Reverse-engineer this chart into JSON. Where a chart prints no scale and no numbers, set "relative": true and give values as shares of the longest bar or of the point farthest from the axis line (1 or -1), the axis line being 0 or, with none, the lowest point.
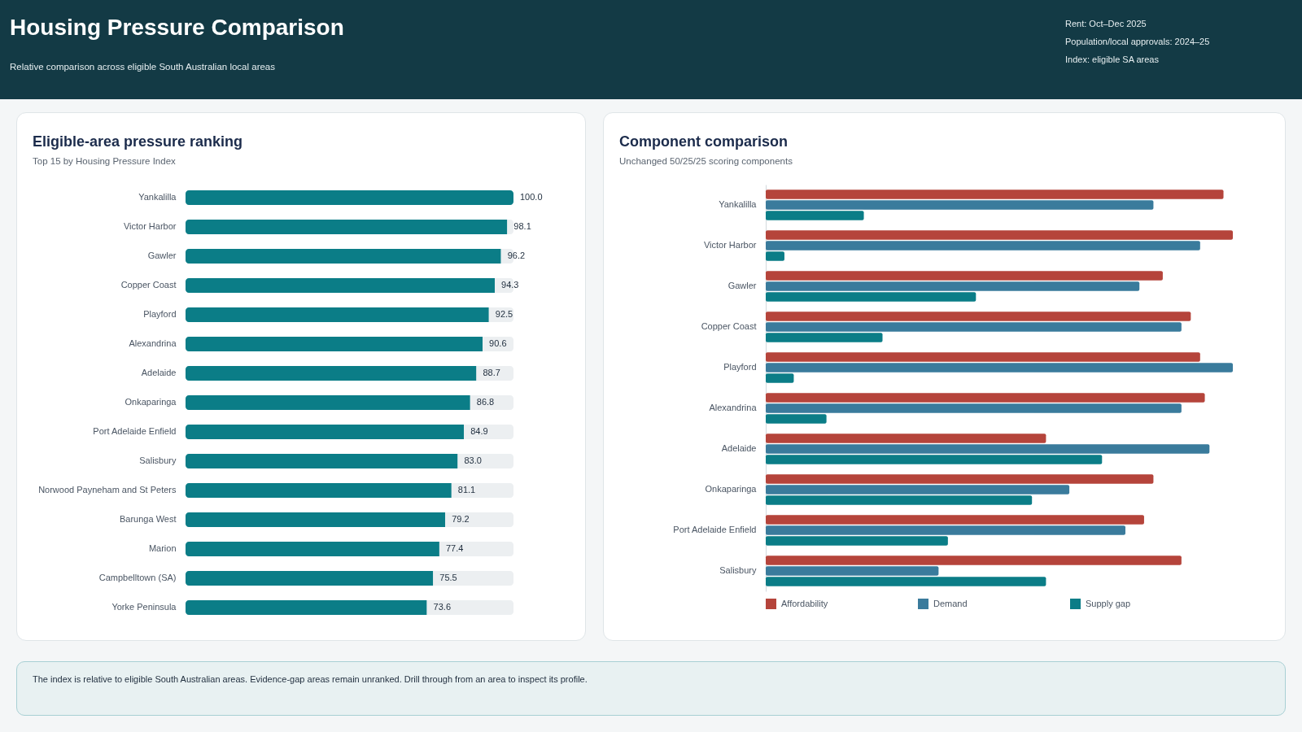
{
  "chart_data": [
    {
      "type": "other",
      "title": "Housing Pressure Comparison",
      "subtitle": "Relative comparison across eligible South Australian local areas",
      "annotations": [
        "Rent: Oct–Dec 2025",
        "Population/local approvals: 2024–25",
        "Index: eligible SA areas"
      ]
    },
    {
      "type": "bar",
      "title": "Eligible-area pressure ranking",
      "subtitle": "Top 15 by Housing Pressure Index",
      "orientation": "horizontal",
      "stacked": true,
      "tick_labels": "y",
      "categories": [
        "Yankalilla",
        "Victor Harbor",
        "Gawler",
        "Copper Coast",
        "Playford",
        "Alexandrina",
        "Adelaide",
        "Onkaparinga",
        "Port Adelaide Enfield",
        "Salisbury",
        "Norwood Payneham and St Peters",
        "Barunga West",
        "Marion",
        "Campbelltown (SA)",
        "Yorke Peninsula"
      ],
      "series": [
        {
          "color": "#0b7d87",
          "values": [
            100.0,
            98.1,
            96.2,
            94.3,
            92.5,
            90.6,
            88.7,
            86.8,
            84.9,
            83.0,
            81.1,
            79.2,
            77.4,
            75.5,
            73.6
          ],
          "value_labels": [
            "100.0",
            "98.1",
            "96.2",
            "94.3",
            "92.5",
            "90.6",
            "88.7",
            "86.8",
            "84.9",
            "83.0",
            "81.1",
            "79.2",
            "77.4",
            "75.5",
            "73.6"
          ]
        },
        {
          "color": "#eceff1",
          "values": [
            null,
            1.9,
            3.8,
            5.7,
            7.5,
            9.4,
            11.3,
            13.2,
            15.1,
            17.0,
            18.9,
            20.8,
            22.6,
            24.5,
            26.4
          ]
        }
      ]
    },
    {
      "type": "bar",
      "title": "Component comparison",
      "subtitle": "Unchanged 50/25/25 scoring components",
      "orientation": "horizontal",
      "relative": true,
      "legend": "bottom left",
      "categories": [
        "Yankalilla",
        "Victor Harbor",
        "Gawler",
        "Copper Coast",
        "Playford",
        "Alexandrina",
        "Adelaide",
        "Onkaparinga",
        "Port Adelaide Enfield",
        "Salisbury"
      ],
      "series": [
        {
          "name": "Affordability",
          "color": "#b5443b",
          "values": [
            0.98,
            1.0,
            0.85,
            0.91,
            0.93,
            0.94,
            0.6,
            0.83,
            0.81,
            0.89
          ]
        },
        {
          "name": "Demand",
          "color": "#3a7b9c",
          "values": [
            0.83,
            0.93,
            0.8,
            0.89,
            1.0,
            0.89,
            0.95,
            0.65,
            0.77,
            0.37
          ]
        },
        {
          "name": "Supply gap",
          "color": "#0b7d87",
          "values": [
            0.21,
            0.04,
            0.45,
            0.25,
            0.06,
            0.13,
            0.72,
            0.57,
            0.39,
            0.6
          ]
        }
      ]
    },
    {
      "type": "other",
      "annotations": [
        "The index is relative to eligible South Australian areas. Evidence-gap areas remain unranked. Drill through from an area to inspect its profile."
      ]
    }
  ]
}
